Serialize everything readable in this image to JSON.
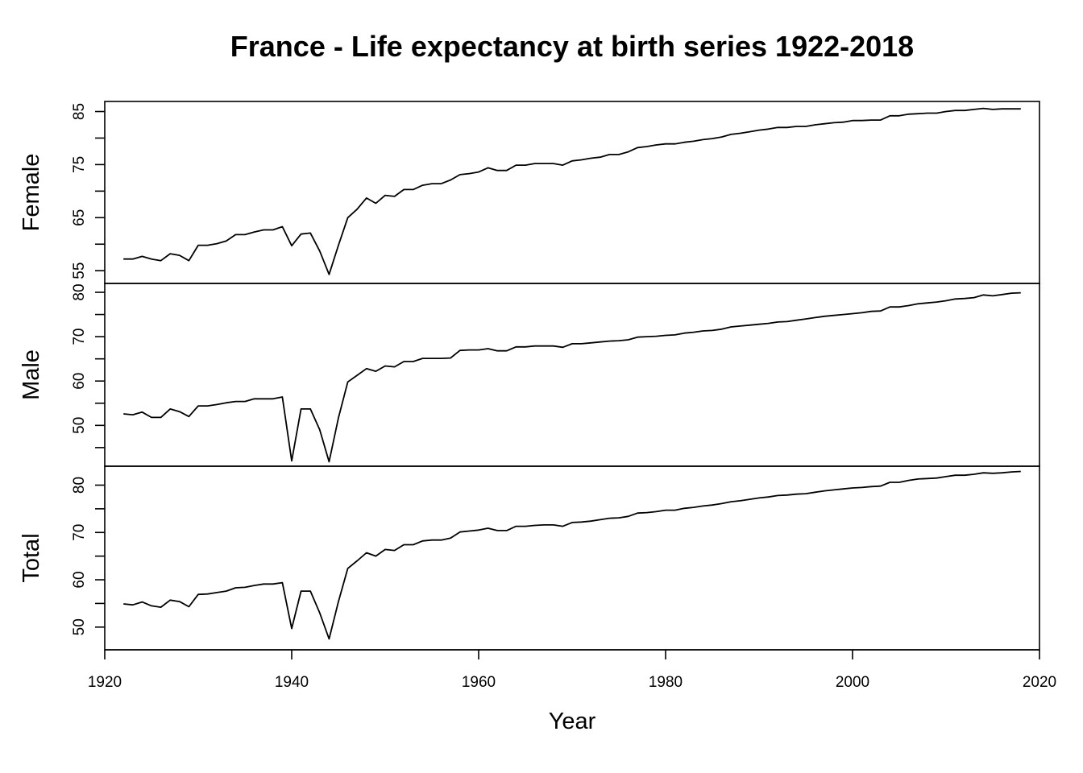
{
  "chart_data": {
    "type": "line",
    "title": "France - Life expectancy at birth series 1922-2018",
    "xlabel": "Year",
    "x_ticks": [
      1920,
      1940,
      1960,
      1980,
      2000,
      2020
    ],
    "xlim": [
      1920,
      2020
    ],
    "x": [
      1922,
      1923,
      1924,
      1925,
      1926,
      1927,
      1928,
      1929,
      1930,
      1931,
      1932,
      1933,
      1934,
      1935,
      1936,
      1937,
      1938,
      1939,
      1940,
      1941,
      1942,
      1943,
      1944,
      1945,
      1946,
      1947,
      1948,
      1949,
      1950,
      1951,
      1952,
      1953,
      1954,
      1955,
      1956,
      1957,
      1958,
      1959,
      1960,
      1961,
      1962,
      1963,
      1964,
      1965,
      1966,
      1967,
      1968,
      1969,
      1970,
      1971,
      1972,
      1973,
      1974,
      1975,
      1976,
      1977,
      1978,
      1979,
      1980,
      1981,
      1982,
      1983,
      1984,
      1985,
      1986,
      1987,
      1988,
      1989,
      1990,
      1991,
      1992,
      1993,
      1994,
      1995,
      1996,
      1997,
      1998,
      1999,
      2000,
      2001,
      2002,
      2003,
      2004,
      2005,
      2006,
      2007,
      2008,
      2009,
      2010,
      2011,
      2012,
      2013,
      2014,
      2015,
      2016,
      2017,
      2018
    ],
    "panels": [
      {
        "name": "Female",
        "ylabel": "Female",
        "y_ticks": [
          55,
          65,
          75,
          85
        ],
        "ylim": [
          52.6,
          86.9
        ],
        "values": [
          57.2,
          57.2,
          57.7,
          57.2,
          56.9,
          58.2,
          57.9,
          56.9,
          59.8,
          59.8,
          60.1,
          60.6,
          61.8,
          61.8,
          62.3,
          62.7,
          62.7,
          63.3,
          59.7,
          61.9,
          62.1,
          58.7,
          54.3,
          59.8,
          65.0,
          66.6,
          68.7,
          67.7,
          69.2,
          69.0,
          70.3,
          70.3,
          71.1,
          71.4,
          71.4,
          72.1,
          73.1,
          73.3,
          73.6,
          74.4,
          73.9,
          73.9,
          74.9,
          74.9,
          75.2,
          75.2,
          75.2,
          74.9,
          75.7,
          75.9,
          76.2,
          76.4,
          76.9,
          76.9,
          77.4,
          78.2,
          78.4,
          78.7,
          78.9,
          78.9,
          79.2,
          79.4,
          79.7,
          79.9,
          80.2,
          80.7,
          80.9,
          81.2,
          81.5,
          81.7,
          82.0,
          82.0,
          82.2,
          82.2,
          82.5,
          82.7,
          82.9,
          83.0,
          83.3,
          83.3,
          83.4,
          83.4,
          84.2,
          84.2,
          84.5,
          84.6,
          84.7,
          84.7,
          85.0,
          85.2,
          85.2,
          85.4,
          85.6,
          85.4,
          85.5,
          85.5,
          85.5
        ]
      },
      {
        "name": "Male",
        "ylabel": "Male",
        "y_ticks": [
          50,
          60,
          70,
          80
        ],
        "ylim": [
          40.8,
          82.0
        ],
        "values": [
          52.6,
          52.4,
          53.0,
          51.8,
          51.8,
          53.7,
          53.1,
          52.0,
          54.4,
          54.4,
          54.7,
          55.1,
          55.4,
          55.4,
          56.0,
          56.0,
          56.0,
          56.4,
          42.0,
          53.7,
          53.7,
          49.0,
          41.8,
          51.7,
          59.8,
          61.3,
          62.8,
          62.2,
          63.4,
          63.2,
          64.4,
          64.4,
          65.1,
          65.1,
          65.1,
          65.2,
          66.9,
          67.0,
          67.0,
          67.3,
          66.8,
          66.8,
          67.7,
          67.7,
          67.9,
          67.9,
          67.9,
          67.6,
          68.4,
          68.4,
          68.6,
          68.8,
          69.0,
          69.1,
          69.3,
          69.9,
          70.0,
          70.1,
          70.3,
          70.4,
          70.8,
          71.0,
          71.3,
          71.4,
          71.7,
          72.2,
          72.4,
          72.6,
          72.8,
          73.0,
          73.3,
          73.4,
          73.7,
          74.0,
          74.3,
          74.6,
          74.8,
          75.0,
          75.2,
          75.4,
          75.7,
          75.8,
          76.7,
          76.7,
          77.0,
          77.4,
          77.6,
          77.8,
          78.1,
          78.5,
          78.6,
          78.8,
          79.4,
          79.2,
          79.5,
          79.8,
          79.9
        ]
      },
      {
        "name": "Total",
        "ylabel": "Total",
        "y_ticks": [
          50,
          60,
          70,
          80
        ],
        "ylim": [
          45.2,
          84.0
        ],
        "values": [
          54.9,
          54.7,
          55.3,
          54.5,
          54.2,
          55.7,
          55.4,
          54.3,
          56.9,
          57.0,
          57.3,
          57.6,
          58.3,
          58.4,
          58.8,
          59.1,
          59.1,
          59.4,
          49.7,
          57.6,
          57.6,
          53.0,
          47.5,
          55.4,
          62.4,
          64.0,
          65.7,
          65.0,
          66.4,
          66.2,
          67.4,
          67.4,
          68.2,
          68.4,
          68.4,
          68.8,
          70.1,
          70.3,
          70.5,
          70.9,
          70.4,
          70.4,
          71.3,
          71.3,
          71.5,
          71.6,
          71.6,
          71.3,
          72.1,
          72.2,
          72.4,
          72.7,
          73.0,
          73.1,
          73.4,
          74.1,
          74.2,
          74.4,
          74.7,
          74.7,
          75.1,
          75.3,
          75.6,
          75.8,
          76.1,
          76.5,
          76.7,
          77.0,
          77.3,
          77.5,
          77.8,
          77.9,
          78.1,
          78.2,
          78.5,
          78.8,
          79.0,
          79.2,
          79.4,
          79.5,
          79.7,
          79.8,
          80.6,
          80.6,
          81.0,
          81.3,
          81.4,
          81.5,
          81.8,
          82.1,
          82.1,
          82.3,
          82.6,
          82.5,
          82.6,
          82.8,
          82.9
        ]
      }
    ]
  }
}
